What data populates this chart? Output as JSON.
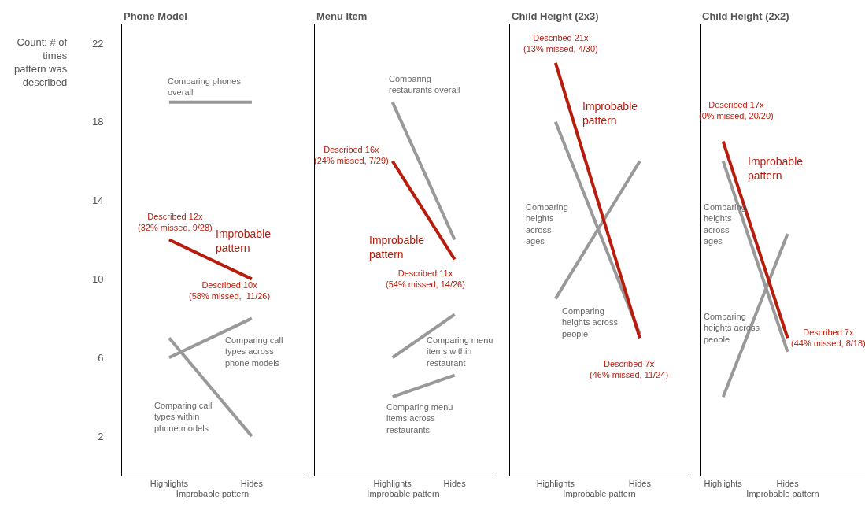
{
  "chart_data": [
    {
      "type": "line",
      "title": "Phone Model",
      "ylabel": "Count: # of times pattern was described",
      "xlabel": "Improbable pattern",
      "categories": [
        "Highlights",
        "Hides"
      ],
      "ylim": [
        0,
        23
      ],
      "yticks": [
        2,
        6,
        10,
        14,
        18,
        22
      ],
      "grid": false,
      "legend": false,
      "series": [
        {
          "name": "Comparing phones overall",
          "color": "#999999",
          "values": [
            19,
            19
          ]
        },
        {
          "name": "Improbable pattern",
          "color": "#b81c0c",
          "values": [
            12,
            10
          ],
          "value_labels": [
            "Described 12x\n(32% missed, 9/28)",
            "Described 10x\n(58% missed,  11/26)"
          ]
        },
        {
          "name": "Comparing call types across phone models",
          "color": "#999999",
          "values": [
            6,
            8
          ]
        },
        {
          "name": "Comparing call types within phone models",
          "color": "#999999",
          "values": [
            7,
            2
          ]
        }
      ]
    },
    {
      "type": "line",
      "title": "Menu Item",
      "xlabel": "Improbable pattern",
      "categories": [
        "Highlights",
        "Hides"
      ],
      "ylim": [
        0,
        23
      ],
      "tick_labels": "x",
      "grid": false,
      "legend": false,
      "series": [
        {
          "name": "Comparing restaurants overall",
          "color": "#999999",
          "values": [
            19,
            12
          ]
        },
        {
          "name": "Improbable pattern",
          "color": "#b81c0c",
          "values": [
            16,
            11
          ],
          "value_labels": [
            "Described 16x\n(24% missed, 7/29)",
            "Described 11x\n(54% missed, 14/26)"
          ]
        },
        {
          "name": "Comparing menu items within restaurant",
          "color": "#999999",
          "values": [
            6,
            8.2
          ]
        },
        {
          "name": "Comparing menu items across restaurants",
          "color": "#999999",
          "values": [
            4,
            5.1
          ]
        }
      ]
    },
    {
      "type": "line",
      "title": "Child Height (2x3)",
      "xlabel": "Improbable pattern",
      "categories": [
        "Highlights",
        "Hides"
      ],
      "ylim": [
        0,
        23
      ],
      "tick_labels": "x",
      "grid": false,
      "legend": false,
      "series": [
        {
          "name": "Comparing heights across ages",
          "color": "#999999",
          "values": [
            18,
            7.2
          ]
        },
        {
          "name": "Comparing heights across people",
          "color": "#999999",
          "values": [
            9,
            16
          ]
        },
        {
          "name": "Improbable pattern",
          "color": "#b81c0c",
          "values": [
            21,
            7
          ],
          "value_labels": [
            "Described 21x\n(13% missed, 4/30)",
            "Described 7x\n(46% missed, 11/24)"
          ]
        }
      ]
    },
    {
      "type": "line",
      "title": "Child Height (2x2)",
      "xlabel": "Improbable pattern",
      "categories": [
        "Highlights",
        "Hides"
      ],
      "ylim": [
        0,
        23
      ],
      "tick_labels": "x",
      "grid": false,
      "legend": false,
      "series": [
        {
          "name": "Comparing heights across ages",
          "color": "#999999",
          "values": [
            16,
            6.3
          ]
        },
        {
          "name": "Comparing heights across people",
          "color": "#999999",
          "values": [
            4,
            12.3
          ]
        },
        {
          "name": "Improbable pattern",
          "color": "#b81c0c",
          "values": [
            17,
            7
          ],
          "value_labels": [
            "Described 17x\n(0% missed, 20/20)",
            "Described 7x\n(44% missed, 8/18)"
          ]
        }
      ]
    }
  ]
}
